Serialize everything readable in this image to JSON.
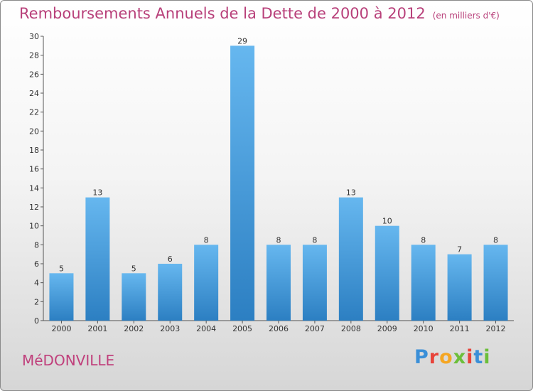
{
  "title": "Remboursements Annuels de la Dette de 2000 à 2012",
  "unit": "(en milliers d'€)",
  "city": "MéDONVILLE",
  "logo": {
    "text": "Proxiti",
    "letters": [
      "P",
      "r",
      "o",
      "x",
      "i",
      "t",
      "i"
    ],
    "colors": [
      "#3a8fd8",
      "#e8433a",
      "#f5a623",
      "#6cbf3a",
      "#e8433a",
      "#3a8fd8",
      "#6cbf3a"
    ]
  },
  "colors": {
    "bar_top": "#66b7ef",
    "bar_bottom": "#2c7fc2",
    "title": "#b8407a",
    "axis_text": "#333333"
  },
  "chart_data": {
    "type": "bar",
    "title": "Remboursements Annuels de la Dette de 2000 à 2012",
    "categories": [
      "2000",
      "2001",
      "2002",
      "2003",
      "2004",
      "2005",
      "2006",
      "2007",
      "2008",
      "2009",
      "2010",
      "2011",
      "2012"
    ],
    "values": [
      5,
      13,
      5,
      6,
      8,
      29,
      8,
      8,
      13,
      10,
      8,
      7,
      8
    ],
    "ylim": [
      0,
      30
    ],
    "yticks": [
      0,
      2,
      4,
      6,
      8,
      10,
      12,
      14,
      16,
      18,
      20,
      22,
      24,
      26,
      28,
      30
    ],
    "grid": false,
    "data_labels": true
  }
}
